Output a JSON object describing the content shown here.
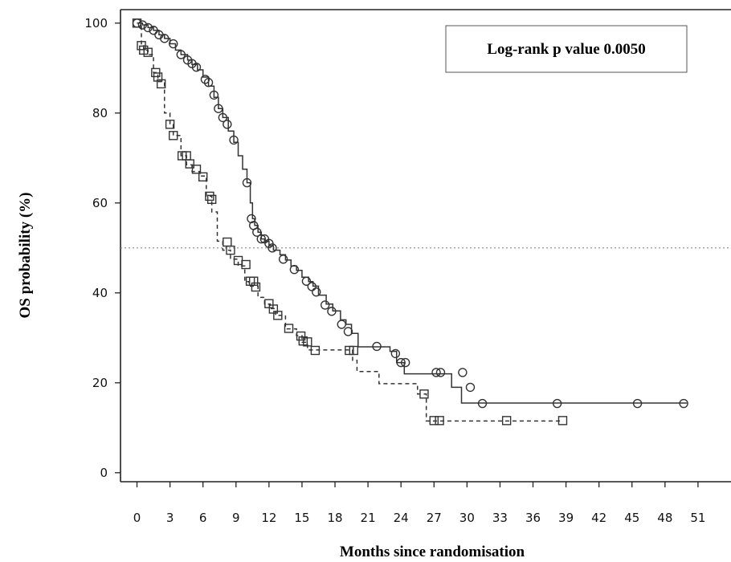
{
  "chart_data": {
    "type": "line",
    "xlabel": "Months since randomisation",
    "ylabel": "OS probability (%)",
    "xlim": [
      -1.5,
      54
    ],
    "ylim": [
      -2,
      103
    ],
    "x_ticks": [
      0,
      3,
      6,
      9,
      12,
      15,
      18,
      21,
      24,
      27,
      30,
      33,
      36,
      39,
      42,
      45,
      48,
      51
    ],
    "y_ticks": [
      0,
      20,
      40,
      60,
      80,
      100
    ],
    "grid": false,
    "reference_line": {
      "y": 50,
      "style": "dotted"
    },
    "annotation": "Log-rank p value 0.0050",
    "series": [
      {
        "line_style": "solid",
        "marker": "circle",
        "color": "#333333",
        "steps": [
          [
            0,
            100
          ],
          [
            0.5,
            99.6
          ],
          [
            1,
            99
          ],
          [
            1.5,
            98.4
          ],
          [
            2,
            97.4
          ],
          [
            2.5,
            96.6
          ],
          [
            3,
            95.4
          ],
          [
            3.5,
            94
          ],
          [
            4,
            93
          ],
          [
            4.6,
            91.8
          ],
          [
            5,
            90.8
          ],
          [
            5.5,
            89.6
          ],
          [
            6,
            88
          ],
          [
            6.5,
            86
          ],
          [
            7,
            83.5
          ],
          [
            7.4,
            81
          ],
          [
            7.8,
            79
          ],
          [
            8.3,
            76
          ],
          [
            8.8,
            73.5
          ],
          [
            9.2,
            70.5
          ],
          [
            9.6,
            67.5
          ],
          [
            10,
            64.5
          ],
          [
            10.3,
            60
          ],
          [
            10.5,
            56.5
          ],
          [
            10.7,
            55
          ],
          [
            11,
            53.5
          ],
          [
            11.3,
            52
          ],
          [
            11.6,
            51.5
          ],
          [
            12,
            50.5
          ],
          [
            12.4,
            49.5
          ],
          [
            13,
            48.5
          ],
          [
            13.5,
            47.3
          ],
          [
            14,
            46
          ],
          [
            14.5,
            45
          ],
          [
            15,
            43.5
          ],
          [
            15.6,
            42.5
          ],
          [
            16,
            41.5
          ],
          [
            16.5,
            39.5
          ],
          [
            17.2,
            37.5
          ],
          [
            17.8,
            36
          ],
          [
            18.5,
            34
          ],
          [
            19,
            33
          ],
          [
            19.5,
            31
          ],
          [
            20.1,
            28
          ],
          [
            23,
            27
          ],
          [
            23.6,
            24.5
          ],
          [
            24.3,
            22
          ],
          [
            26.5,
            22
          ],
          [
            28.6,
            19
          ],
          [
            29.5,
            15.5
          ]
        ],
        "end_x": 50,
        "markers": [
          [
            0,
            100
          ],
          [
            0.5,
            99.6
          ],
          [
            1,
            99
          ],
          [
            1.5,
            98.4
          ],
          [
            2,
            97.4
          ],
          [
            2.5,
            96.6
          ],
          [
            3.3,
            95.4
          ],
          [
            4,
            93
          ],
          [
            4.6,
            91.8
          ],
          [
            5,
            91
          ],
          [
            5.4,
            90.2
          ],
          [
            6.2,
            87.5
          ],
          [
            6.5,
            86.8
          ],
          [
            7,
            84
          ],
          [
            7.4,
            81
          ],
          [
            7.8,
            79
          ],
          [
            8.2,
            77.5
          ],
          [
            8.8,
            74
          ],
          [
            10,
            64.5
          ],
          [
            10.4,
            56.5
          ],
          [
            10.6,
            55
          ],
          [
            10.9,
            53.5
          ],
          [
            11.3,
            52
          ],
          [
            11.6,
            52
          ],
          [
            12,
            51
          ],
          [
            12.3,
            50
          ],
          [
            13.3,
            47.5
          ],
          [
            14.3,
            45.2
          ],
          [
            15.4,
            42.6
          ],
          [
            15.9,
            41.4
          ],
          [
            16.3,
            40.2
          ],
          [
            17.1,
            37.3
          ],
          [
            17.7,
            35.9
          ],
          [
            18.6,
            33
          ],
          [
            19.2,
            31.4
          ],
          [
            21.8,
            28.1
          ],
          [
            23.5,
            26.5
          ],
          [
            24,
            24.5
          ],
          [
            24.4,
            24.5
          ],
          [
            27.2,
            22.3
          ],
          [
            27.6,
            22.3
          ],
          [
            29.6,
            22.3
          ],
          [
            30.3,
            19
          ],
          [
            31.4,
            15.4
          ],
          [
            38.2,
            15.4
          ],
          [
            45.5,
            15.4
          ],
          [
            49.7,
            15.4
          ]
        ]
      },
      {
        "line_style": "dashed",
        "marker": "square",
        "color": "#333333",
        "steps": [
          [
            0,
            100
          ],
          [
            0.4,
            95
          ],
          [
            0.6,
            94
          ],
          [
            1,
            93
          ],
          [
            1.5,
            89
          ],
          [
            1.9,
            87
          ],
          [
            2.5,
            80
          ],
          [
            3,
            77.5
          ],
          [
            3.3,
            75
          ],
          [
            4,
            70.5
          ],
          [
            4.5,
            68.5
          ],
          [
            5,
            67
          ],
          [
            5.7,
            66
          ],
          [
            6.3,
            61.5
          ],
          [
            6.8,
            58
          ],
          [
            7.3,
            51.5
          ],
          [
            7.8,
            49.5
          ],
          [
            8.5,
            47.5
          ],
          [
            9.2,
            46
          ],
          [
            9.8,
            42.5
          ],
          [
            10.2,
            41.5
          ],
          [
            11,
            39
          ],
          [
            11.6,
            37.5
          ],
          [
            12.1,
            36.5
          ],
          [
            12.6,
            35
          ],
          [
            13.5,
            32
          ],
          [
            14.5,
            30.5
          ],
          [
            15,
            29
          ],
          [
            15.5,
            27.3
          ],
          [
            19.6,
            25
          ],
          [
            20,
            22.5
          ],
          [
            22,
            19.8
          ],
          [
            25.5,
            17.5
          ],
          [
            26.3,
            11.5
          ]
        ],
        "end_x": 38.5,
        "markers": [
          [
            0,
            100
          ],
          [
            0.4,
            95
          ],
          [
            0.6,
            94
          ],
          [
            1,
            93.5
          ],
          [
            1.7,
            89
          ],
          [
            1.9,
            88
          ],
          [
            2.2,
            86.5
          ],
          [
            3,
            77.5
          ],
          [
            3.3,
            75
          ],
          [
            4.1,
            70.5
          ],
          [
            4.5,
            70.5
          ],
          [
            4.8,
            68.7
          ],
          [
            5.4,
            67.5
          ],
          [
            6,
            65.8
          ],
          [
            6.6,
            61.5
          ],
          [
            6.8,
            60.8
          ],
          [
            8.2,
            51.3
          ],
          [
            8.5,
            49.5
          ],
          [
            9.2,
            47.2
          ],
          [
            9.9,
            46.3
          ],
          [
            10.3,
            42.6
          ],
          [
            10.6,
            42.6
          ],
          [
            10.8,
            41.3
          ],
          [
            12,
            37.6
          ],
          [
            12.4,
            36.4
          ],
          [
            12.8,
            35
          ],
          [
            13.8,
            32.1
          ],
          [
            14.9,
            30.4
          ],
          [
            15.1,
            29.3
          ],
          [
            15.5,
            29.1
          ],
          [
            16.2,
            27.2
          ],
          [
            19.3,
            27.2
          ],
          [
            19.7,
            27.2
          ],
          [
            26.1,
            17.5
          ],
          [
            27,
            11.6
          ],
          [
            27.5,
            11.6
          ],
          [
            33.6,
            11.6
          ],
          [
            38.7,
            11.6
          ]
        ]
      }
    ]
  }
}
